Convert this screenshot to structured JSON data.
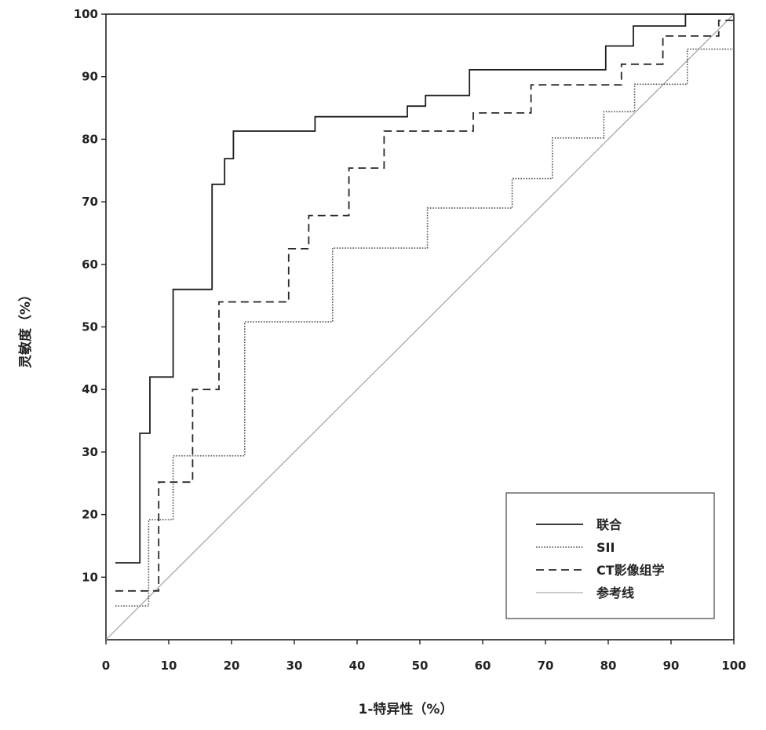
{
  "chart_data": {
    "type": "line",
    "xlabel": "1-特异性（%）",
    "ylabel": "灵敏度（%）",
    "xlim": [
      0,
      100
    ],
    "ylim": [
      0,
      100
    ],
    "x_ticks": [
      0,
      10,
      20,
      30,
      40,
      50,
      60,
      70,
      80,
      90,
      100
    ],
    "y_ticks": [
      10,
      20,
      30,
      40,
      50,
      60,
      70,
      80,
      90,
      100
    ],
    "grid": false,
    "legend_position": "bottom-right",
    "series": [
      {
        "name": "联合",
        "style": "solid",
        "color": "#1e1e1e",
        "points": [
          [
            1.5,
            12.3
          ],
          [
            5.4,
            12.3
          ],
          [
            5.4,
            33.0
          ],
          [
            7.0,
            33.0
          ],
          [
            7.0,
            42.0
          ],
          [
            10.7,
            42.0
          ],
          [
            10.7,
            56.0
          ],
          [
            16.9,
            56.0
          ],
          [
            16.9,
            72.8
          ],
          [
            18.9,
            72.8
          ],
          [
            18.9,
            76.9
          ],
          [
            20.3,
            76.9
          ],
          [
            20.3,
            81.3
          ],
          [
            33.3,
            81.3
          ],
          [
            33.3,
            83.6
          ],
          [
            48.0,
            83.6
          ],
          [
            48.0,
            85.3
          ],
          [
            50.9,
            85.3
          ],
          [
            50.9,
            87.0
          ],
          [
            57.9,
            87.0
          ],
          [
            57.9,
            91.1
          ],
          [
            79.6,
            91.1
          ],
          [
            79.6,
            94.9
          ],
          [
            84.0,
            94.9
          ],
          [
            84.0,
            98.1
          ],
          [
            92.3,
            98.1
          ],
          [
            92.3,
            100
          ],
          [
            100,
            100
          ]
        ]
      },
      {
        "name": "SII",
        "style": "dotted",
        "color": "#555555",
        "points": [
          [
            1.5,
            5.4
          ],
          [
            6.8,
            5.4
          ],
          [
            6.8,
            19.2
          ],
          [
            10.7,
            19.2
          ],
          [
            10.7,
            29.4
          ],
          [
            22.1,
            29.4
          ],
          [
            22.1,
            50.8
          ],
          [
            36.1,
            50.8
          ],
          [
            36.1,
            62.6
          ],
          [
            51.2,
            62.6
          ],
          [
            51.2,
            69.0
          ],
          [
            64.7,
            69.0
          ],
          [
            64.7,
            73.7
          ],
          [
            71.1,
            73.7
          ],
          [
            71.1,
            80.2
          ],
          [
            79.3,
            80.2
          ],
          [
            79.3,
            84.4
          ],
          [
            84.2,
            84.4
          ],
          [
            84.2,
            88.8
          ],
          [
            92.6,
            88.8
          ],
          [
            92.6,
            94.4
          ],
          [
            100,
            94.4
          ]
        ]
      },
      {
        "name": "CT影像组学",
        "style": "dashed",
        "color": "#2a2a2a",
        "points": [
          [
            1.5,
            7.8
          ],
          [
            8.4,
            7.8
          ],
          [
            8.4,
            25.2
          ],
          [
            13.8,
            25.2
          ],
          [
            13.8,
            40.0
          ],
          [
            18.0,
            40.0
          ],
          [
            18.0,
            54.0
          ],
          [
            29.1,
            54.0
          ],
          [
            29.1,
            62.5
          ],
          [
            32.3,
            62.5
          ],
          [
            32.3,
            67.8
          ],
          [
            38.7,
            67.8
          ],
          [
            38.7,
            75.4
          ],
          [
            44.3,
            75.4
          ],
          [
            44.3,
            81.3
          ],
          [
            58.5,
            81.3
          ],
          [
            58.5,
            84.2
          ],
          [
            67.7,
            84.2
          ],
          [
            67.7,
            88.7
          ],
          [
            82.1,
            88.7
          ],
          [
            82.1,
            92.0
          ],
          [
            88.7,
            92.0
          ],
          [
            88.7,
            96.5
          ],
          [
            97.6,
            96.5
          ],
          [
            97.6,
            99.0
          ],
          [
            100,
            99.0
          ]
        ]
      },
      {
        "name": "参考线",
        "style": "solid-thin",
        "color": "#9a9a9a",
        "points": [
          [
            0,
            0
          ],
          [
            100,
            100
          ]
        ]
      }
    ]
  }
}
